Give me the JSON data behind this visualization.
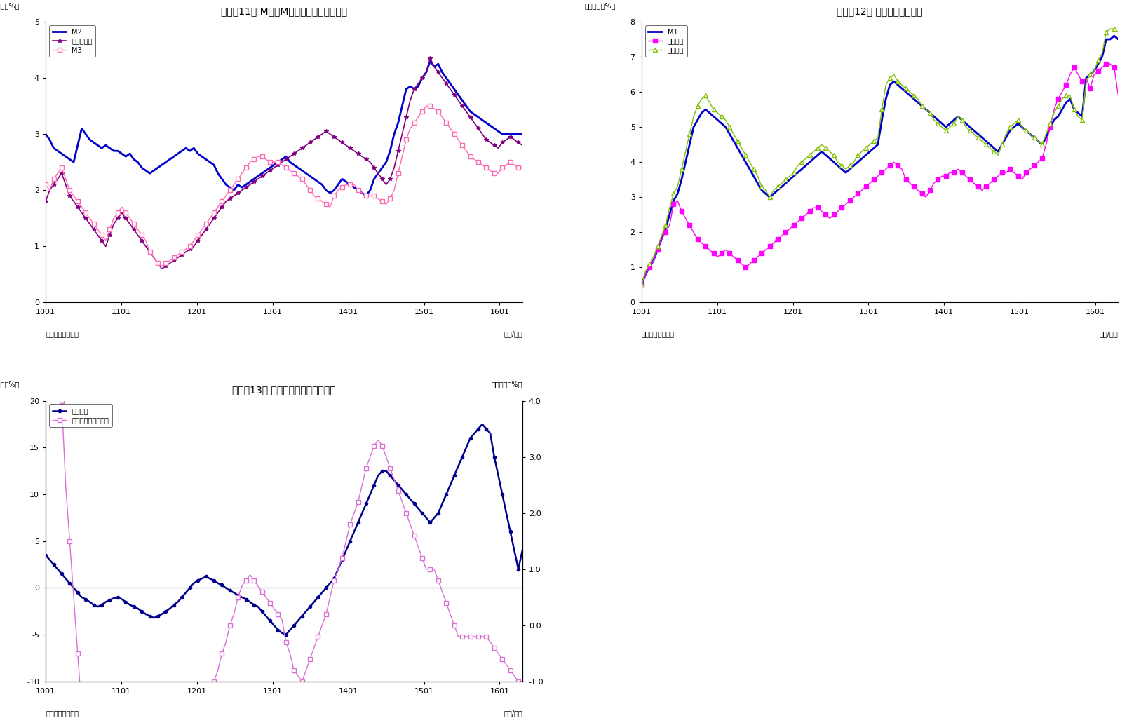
{
  "chart1": {
    "title": "（図表11） M２、M３、広義流動性の動き",
    "ylabel": "（前年比、%）",
    "xlabel_right": "（年/月）",
    "source": "（資料）日本銀行",
    "ylim": [
      0,
      5
    ],
    "yticks": [
      0,
      1,
      2,
      3,
      4,
      5
    ],
    "xticks": [
      1001,
      1101,
      1201,
      1301,
      1401,
      1501,
      1601
    ],
    "legend": [
      "M2",
      "広義流動性",
      "M3"
    ],
    "colors": [
      "#0000CD",
      "#800080",
      "#FF69B4"
    ],
    "M2": [
      3.0,
      2.9,
      2.75,
      2.7,
      2.65,
      2.6,
      2.55,
      2.5,
      2.8,
      3.1,
      3.0,
      2.9,
      2.85,
      2.8,
      2.75,
      2.8,
      2.75,
      2.7,
      2.7,
      2.65,
      2.6,
      2.65,
      2.55,
      2.5,
      2.4,
      2.35,
      2.3,
      2.35,
      2.4,
      2.45,
      2.5,
      2.55,
      2.6,
      2.65,
      2.7,
      2.75,
      2.7,
      2.75,
      2.65,
      2.6,
      2.55,
      2.5,
      2.45,
      2.3,
      2.2,
      2.1,
      2.05,
      2.0,
      2.1,
      2.05,
      2.1,
      2.15,
      2.2,
      2.25,
      2.3,
      2.35,
      2.4,
      2.45,
      2.5,
      2.55,
      2.6,
      2.5,
      2.45,
      2.4,
      2.35,
      2.3,
      2.25,
      2.2,
      2.15,
      2.1,
      2.0,
      1.95,
      2.0,
      2.1,
      2.2,
      2.15,
      2.1,
      2.05,
      2.0,
      1.95,
      1.9,
      2.0,
      2.2,
      2.3,
      2.4,
      2.5,
      2.7,
      3.0,
      3.2,
      3.5,
      3.8,
      3.85,
      3.8,
      3.85,
      4.0,
      4.1,
      4.3,
      4.2,
      4.25,
      4.1,
      4.0,
      3.9,
      3.8,
      3.7,
      3.6,
      3.5,
      3.4,
      3.35,
      3.3,
      3.25,
      3.2,
      3.15,
      3.1,
      3.05,
      3.0,
      3.0,
      3.0,
      3.0,
      3.0,
      3.0
    ],
    "広義流動性": [
      1.8,
      2.0,
      2.1,
      2.2,
      2.3,
      2.1,
      1.9,
      1.8,
      1.7,
      1.6,
      1.5,
      1.4,
      1.3,
      1.2,
      1.1,
      1.0,
      1.2,
      1.4,
      1.5,
      1.6,
      1.5,
      1.4,
      1.3,
      1.2,
      1.1,
      1.0,
      0.9,
      0.8,
      0.7,
      0.6,
      0.65,
      0.7,
      0.75,
      0.8,
      0.85,
      0.9,
      0.95,
      1.0,
      1.1,
      1.2,
      1.3,
      1.4,
      1.5,
      1.6,
      1.7,
      1.8,
      1.85,
      1.9,
      1.95,
      2.0,
      2.05,
      2.1,
      2.15,
      2.2,
      2.25,
      2.3,
      2.35,
      2.4,
      2.45,
      2.5,
      2.55,
      2.6,
      2.65,
      2.7,
      2.75,
      2.8,
      2.85,
      2.9,
      2.95,
      3.0,
      3.05,
      3.0,
      2.95,
      2.9,
      2.85,
      2.8,
      2.75,
      2.7,
      2.65,
      2.6,
      2.55,
      2.5,
      2.4,
      2.3,
      2.2,
      2.1,
      2.2,
      2.4,
      2.7,
      3.0,
      3.3,
      3.6,
      3.8,
      3.9,
      4.0,
      4.1,
      4.35,
      4.2,
      4.1,
      4.0,
      3.9,
      3.8,
      3.7,
      3.6,
      3.5,
      3.4,
      3.3,
      3.2,
      3.1,
      3.0,
      2.9,
      2.85,
      2.8,
      2.75,
      2.85,
      2.9,
      2.95,
      2.9,
      2.85,
      2.8
    ],
    "M3": [
      2.1,
      2.0,
      2.2,
      2.3,
      2.4,
      2.2,
      2.0,
      1.9,
      1.8,
      1.7,
      1.6,
      1.5,
      1.4,
      1.3,
      1.2,
      1.1,
      1.3,
      1.5,
      1.6,
      1.7,
      1.6,
      1.5,
      1.4,
      1.3,
      1.2,
      1.1,
      0.9,
      0.8,
      0.7,
      0.65,
      0.7,
      0.75,
      0.8,
      0.85,
      0.9,
      0.95,
      1.0,
      1.1,
      1.2,
      1.3,
      1.4,
      1.5,
      1.6,
      1.7,
      1.8,
      1.9,
      2.0,
      2.1,
      2.2,
      2.3,
      2.4,
      2.5,
      2.55,
      2.6,
      2.6,
      2.55,
      2.5,
      2.5,
      2.5,
      2.45,
      2.4,
      2.35,
      2.3,
      2.25,
      2.2,
      2.1,
      2.0,
      1.9,
      1.85,
      1.8,
      1.75,
      1.7,
      1.9,
      2.0,
      2.05,
      2.1,
      2.1,
      2.1,
      2.0,
      1.95,
      1.9,
      1.9,
      1.9,
      1.85,
      1.8,
      1.75,
      1.85,
      2.0,
      2.3,
      2.6,
      2.9,
      3.1,
      3.2,
      3.3,
      3.4,
      3.5,
      3.5,
      3.45,
      3.4,
      3.3,
      3.2,
      3.1,
      3.0,
      2.9,
      2.8,
      2.7,
      2.6,
      2.55,
      2.5,
      2.45,
      2.4,
      2.35,
      2.3,
      2.3,
      2.4,
      2.45,
      2.5,
      2.45,
      2.4,
      2.4
    ]
  },
  "chart2": {
    "title": "（図表12） 現金・預金の動き",
    "ylabel": "（前年比、%）",
    "xlabel_right": "（年/月）",
    "source": "（資料）日本銀行",
    "ylim": [
      0,
      8
    ],
    "yticks": [
      0,
      1,
      2,
      3,
      4,
      5,
      6,
      7,
      8
    ],
    "xticks": [
      1001,
      1101,
      1201,
      1301,
      1401,
      1501,
      1601
    ],
    "legend": [
      "M1",
      "現金通貨",
      "預金通貨"
    ],
    "colors": [
      "#0000CD",
      "#FF00FF",
      "#7FBF00"
    ],
    "M1": [
      0.5,
      0.8,
      1.0,
      1.2,
      1.5,
      1.8,
      2.1,
      2.5,
      2.9,
      3.1,
      3.5,
      4.0,
      4.5,
      5.0,
      5.2,
      5.4,
      5.5,
      5.4,
      5.3,
      5.2,
      5.1,
      5.0,
      4.8,
      4.6,
      4.4,
      4.2,
      4.0,
      3.8,
      3.6,
      3.4,
      3.2,
      3.1,
      3.0,
      3.1,
      3.2,
      3.3,
      3.4,
      3.5,
      3.6,
      3.7,
      3.8,
      3.9,
      4.0,
      4.1,
      4.2,
      4.3,
      4.2,
      4.1,
      4.0,
      3.9,
      3.8,
      3.7,
      3.8,
      3.9,
      4.0,
      4.1,
      4.2,
      4.3,
      4.4,
      4.5,
      5.2,
      5.8,
      6.2,
      6.3,
      6.2,
      6.1,
      6.0,
      5.9,
      5.8,
      5.7,
      5.6,
      5.5,
      5.4,
      5.3,
      5.2,
      5.1,
      5.0,
      5.1,
      5.2,
      5.3,
      5.2,
      5.1,
      5.0,
      4.9,
      4.8,
      4.7,
      4.6,
      4.5,
      4.4,
      4.3,
      4.5,
      4.7,
      4.9,
      5.0,
      5.1,
      5.0,
      4.9,
      4.8,
      4.7,
      4.6,
      4.5,
      4.7,
      5.0,
      5.2,
      5.3,
      5.5,
      5.7,
      5.8,
      5.5,
      5.4,
      5.3,
      6.4,
      6.5,
      6.6,
      6.8,
      7.0,
      7.5,
      7.5,
      7.6,
      7.5
    ],
    "現金通貨": [
      0.5,
      0.8,
      1.0,
      1.2,
      1.5,
      1.8,
      2.0,
      2.2,
      2.8,
      2.9,
      2.6,
      2.4,
      2.2,
      2.0,
      1.8,
      1.7,
      1.6,
      1.5,
      1.4,
      1.3,
      1.4,
      1.5,
      1.4,
      1.3,
      1.2,
      1.1,
      1.0,
      1.1,
      1.2,
      1.3,
      1.4,
      1.5,
      1.6,
      1.7,
      1.8,
      1.9,
      2.0,
      2.1,
      2.2,
      2.3,
      2.4,
      2.5,
      2.6,
      2.7,
      2.7,
      2.6,
      2.5,
      2.4,
      2.5,
      2.6,
      2.7,
      2.8,
      2.9,
      3.0,
      3.1,
      3.2,
      3.3,
      3.4,
      3.5,
      3.6,
      3.7,
      3.8,
      3.9,
      4.0,
      3.9,
      3.8,
      3.5,
      3.4,
      3.3,
      3.2,
      3.1,
      3.0,
      3.2,
      3.4,
      3.5,
      3.6,
      3.6,
      3.7,
      3.7,
      3.8,
      3.7,
      3.6,
      3.5,
      3.4,
      3.3,
      3.2,
      3.3,
      3.4,
      3.5,
      3.6,
      3.7,
      3.7,
      3.8,
      3.7,
      3.6,
      3.5,
      3.7,
      3.8,
      3.9,
      4.0,
      4.1,
      4.5,
      5.0,
      5.5,
      5.8,
      6.0,
      6.2,
      6.5,
      6.7,
      6.5,
      6.3,
      6.4,
      6.1,
      6.5,
      6.6,
      6.7,
      6.8,
      6.8,
      6.7,
      5.9
    ],
    "預金通貨": [
      0.5,
      0.9,
      1.1,
      1.3,
      1.6,
      1.9,
      2.2,
      2.7,
      3.1,
      3.3,
      3.8,
      4.3,
      4.8,
      5.3,
      5.6,
      5.8,
      5.9,
      5.7,
      5.5,
      5.4,
      5.3,
      5.2,
      5.0,
      4.8,
      4.6,
      4.4,
      4.2,
      4.0,
      3.8,
      3.6,
      3.3,
      3.2,
      3.0,
      3.2,
      3.3,
      3.4,
      3.5,
      3.6,
      3.7,
      3.9,
      4.0,
      4.1,
      4.2,
      4.3,
      4.4,
      4.5,
      4.4,
      4.3,
      4.2,
      4.0,
      3.9,
      3.8,
      3.9,
      4.0,
      4.2,
      4.3,
      4.4,
      4.5,
      4.6,
      4.7,
      5.5,
      6.2,
      6.4,
      6.5,
      6.3,
      6.2,
      6.1,
      6.0,
      5.9,
      5.8,
      5.6,
      5.5,
      5.4,
      5.2,
      5.1,
      5.0,
      4.9,
      5.0,
      5.1,
      5.3,
      5.2,
      5.0,
      4.9,
      4.8,
      4.7,
      4.6,
      4.5,
      4.4,
      4.3,
      4.2,
      4.5,
      4.8,
      5.0,
      5.1,
      5.2,
      5.0,
      4.9,
      4.8,
      4.7,
      4.6,
      4.5,
      4.8,
      5.1,
      5.4,
      5.6,
      5.8,
      5.9,
      5.9,
      5.5,
      5.3,
      5.2,
      6.3,
      6.5,
      6.6,
      6.9,
      7.1,
      7.7,
      7.8,
      7.8,
      7.7
    ]
  },
  "chart3": {
    "title": "（図表13） 投資信託と準通貨の動き",
    "ylabel_left": "（前年比、%）",
    "ylabel_right": "（前年比、%）",
    "xlabel_right": "（年/月）",
    "source": "（資料）日本銀行",
    "ylim_left": [
      -10,
      20
    ],
    "ylim_right": [
      -1.0,
      4.0
    ],
    "yticks_left": [
      -10,
      -5,
      0,
      5,
      10,
      15,
      20
    ],
    "yticks_right": [
      -1.0,
      0.0,
      1.0,
      2.0,
      3.0,
      4.0
    ],
    "xticks": [
      1001,
      1101,
      1201,
      1301,
      1401,
      1501,
      1601
    ],
    "legend": [
      "投資信託",
      "準通貨（右メモリ）"
    ],
    "colors": [
      "#00008B",
      "#DA70D6"
    ],
    "投資信託": [
      3.5,
      3.0,
      2.5,
      2.0,
      1.5,
      1.0,
      0.5,
      0.0,
      -0.5,
      -1.0,
      -1.2,
      -1.5,
      -1.8,
      -2.0,
      -1.8,
      -1.5,
      -1.3,
      -1.1,
      -1.0,
      -1.2,
      -1.5,
      -1.8,
      -2.0,
      -2.2,
      -2.5,
      -2.8,
      -3.0,
      -3.2,
      -3.0,
      -2.8,
      -2.5,
      -2.2,
      -1.8,
      -1.5,
      -1.0,
      -0.5,
      0.0,
      0.5,
      0.8,
      1.0,
      1.2,
      1.0,
      0.8,
      0.5,
      0.3,
      0.0,
      -0.3,
      -0.5,
      -0.8,
      -1.0,
      -1.2,
      -1.5,
      -1.8,
      -2.0,
      -2.5,
      -3.0,
      -3.5,
      -4.0,
      -4.5,
      -4.8,
      -5.0,
      -4.5,
      -4.0,
      -3.5,
      -3.0,
      -2.5,
      -2.0,
      -1.5,
      -1.0,
      -0.5,
      0.0,
      0.5,
      1.0,
      2.0,
      3.0,
      4.0,
      5.0,
      6.0,
      7.0,
      8.0,
      9.0,
      10.0,
      11.0,
      12.0,
      12.5,
      12.5,
      12.0,
      11.5,
      11.0,
      10.5,
      10.0,
      9.5,
      9.0,
      8.5,
      8.0,
      7.5,
      7.0,
      7.5,
      8.0,
      9.0,
      10.0,
      11.0,
      12.0,
      13.0,
      14.0,
      15.0,
      16.0,
      16.5,
      17.0,
      17.5,
      17.0,
      16.5,
      14.0,
      12.0,
      10.0,
      8.0,
      6.0,
      4.0,
      2.0,
      4.0
    ],
    "準通貨": [
      12.0,
      10.0,
      8.0,
      6.0,
      4.0,
      2.5,
      1.5,
      0.5,
      -0.5,
      -1.5,
      -2.5,
      -3.5,
      -4.5,
      -5.0,
      -5.5,
      -6.0,
      -6.0,
      -5.5,
      -5.0,
      -4.5,
      -4.5,
      -5.0,
      -5.5,
      -5.5,
      -5.5,
      -5.5,
      -5.5,
      -5.5,
      -5.5,
      -5.5,
      -5.5,
      -5.5,
      -5.5,
      -5.0,
      -4.5,
      -4.0,
      -3.5,
      -3.0,
      -2.5,
      -2.0,
      -1.5,
      -1.2,
      -1.0,
      -0.8,
      -0.5,
      -0.3,
      0.0,
      0.2,
      0.5,
      0.7,
      0.8,
      0.9,
      0.8,
      0.7,
      0.6,
      0.5,
      0.4,
      0.3,
      0.2,
      0.1,
      -0.3,
      -0.5,
      -0.8,
      -0.9,
      -1.0,
      -0.8,
      -0.6,
      -0.4,
      -0.2,
      0.0,
      0.2,
      0.5,
      0.8,
      1.0,
      1.2,
      1.5,
      1.8,
      2.0,
      2.2,
      2.5,
      2.8,
      3.0,
      3.2,
      3.3,
      3.2,
      3.0,
      2.8,
      2.6,
      2.4,
      2.2,
      2.0,
      1.8,
      1.6,
      1.4,
      1.2,
      1.0,
      1.0,
      1.0,
      0.8,
      0.6,
      0.4,
      0.2,
      0.0,
      -0.2,
      -0.2,
      -0.2,
      -0.2,
      -0.2,
      -0.2,
      -0.2,
      -0.2,
      -0.3,
      -0.4,
      -0.5,
      -0.6,
      -0.7,
      -0.8,
      -0.9,
      -1.0,
      -1.0
    ]
  }
}
